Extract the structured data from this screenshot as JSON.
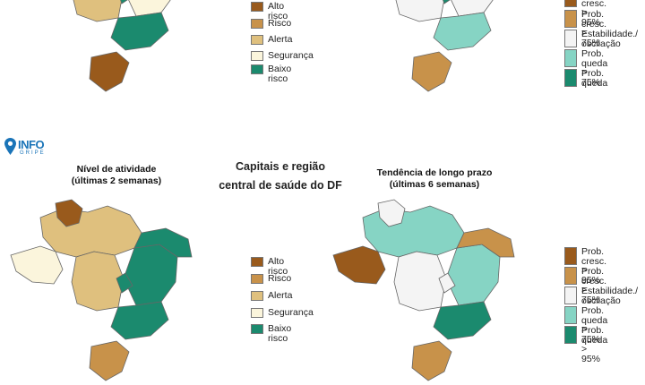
{
  "logo": {
    "name": "INFO",
    "sub": "GRIPE"
  },
  "center_title": "Capitais e região\ncentral de saúde do DF",
  "panels": {
    "activity_bottom": {
      "heading": "Nível de atividade\n(últimas 2 semanas)"
    },
    "trend_bottom": {
      "heading": "Tendência de longo prazo\n(últimas 6 semanas)"
    }
  },
  "legend_activity": [
    {
      "label": "Alto risco",
      "color": "#995a1c"
    },
    {
      "label": "Risco",
      "color": "#c8924a"
    },
    {
      "label": "Alerta",
      "color": "#dfc07e"
    },
    {
      "label": "Segurança",
      "color": "#fbf5dc"
    },
    {
      "label": "Baixo risco",
      "color": "#1b8a6e"
    }
  ],
  "legend_trend": [
    {
      "label": "Prob. cresc.\n> 95%",
      "color": "#995a1c"
    },
    {
      "label": "Prob. cresc.\n> 75%",
      "color": "#c8924a"
    },
    {
      "label": "Estabilidade./\noscilação",
      "color": "#f4f4f4"
    },
    {
      "label": "Prob. queda\n> 75%",
      "color": "#86d4c4"
    },
    {
      "label": "Prob. queda\n> 95%",
      "color": "#1b8a6e"
    }
  ],
  "colors": {
    "alto": "#995a1c",
    "risco": "#c8924a",
    "alerta": "#dfc07e",
    "seguranca": "#fbf5dc",
    "baixo": "#1b8a6e",
    "queda75": "#86d4c4",
    "estavel": "#f4f4f4",
    "border": "#666666"
  },
  "maps": {
    "top_activity": {
      "N": "baixo",
      "NW": "seguranca",
      "W": "alto",
      "C": "alerta",
      "E": "seguranca",
      "NE": "baixo",
      "SE": "baixo",
      "S": "alto",
      "DF": "baixo"
    },
    "top_trend": {
      "N": "estavel",
      "NW": "risco",
      "W": "estavel",
      "C": "estavel",
      "E": "estavel",
      "NE": "baixo",
      "SE": "queda75",
      "S": "risco",
      "DF": "baixo"
    },
    "bottom_activity": {
      "N": "alerta",
      "NW": "alto",
      "W": "seguranca",
      "C": "alerta",
      "E": "baixo",
      "NE": "baixo",
      "SE": "baixo",
      "S": "risco",
      "DF": "baixo"
    },
    "bottom_trend": {
      "N": "queda75",
      "NW": "estavel",
      "W": "alto",
      "C": "estavel",
      "E": "queda75",
      "NE": "risco",
      "SE": "baixo",
      "S": "risco",
      "DF": "estavel"
    }
  }
}
